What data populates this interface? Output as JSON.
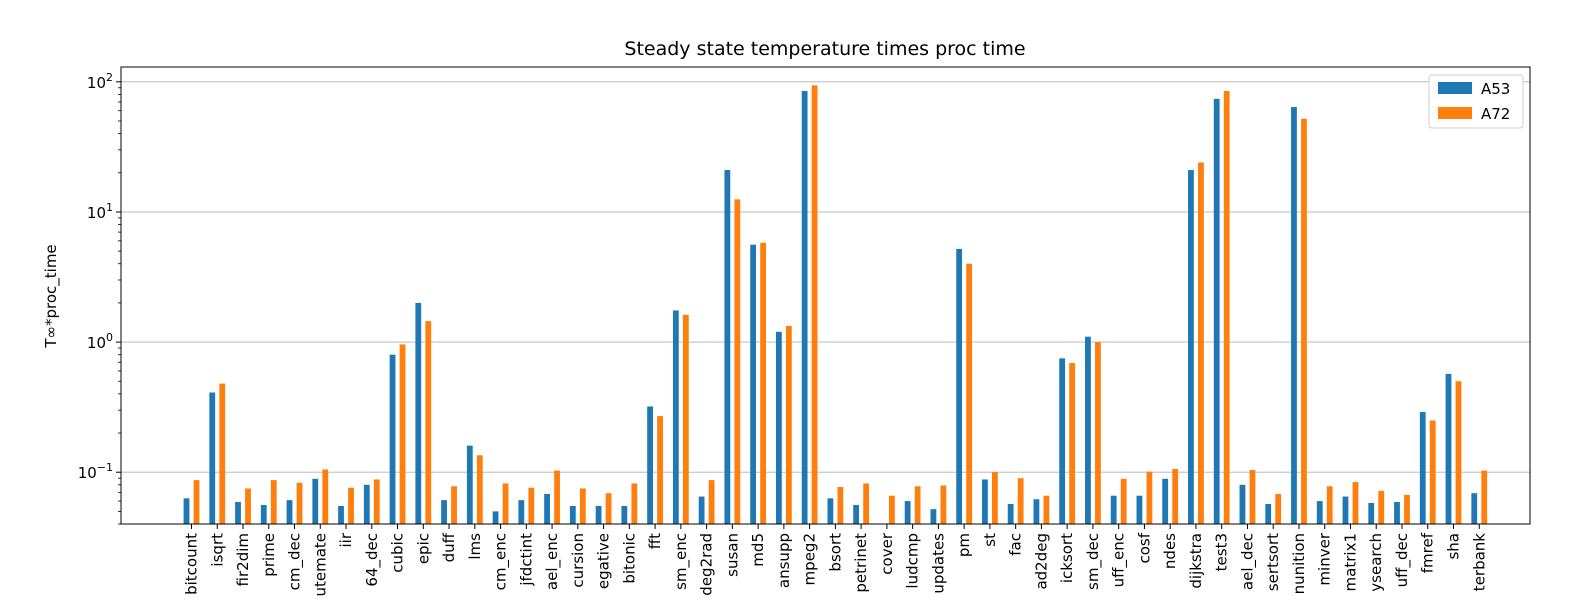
{
  "chart_data": {
    "type": "bar",
    "title": "Steady state temperature times proc time",
    "xlabel": "",
    "ylabel": "T∞*proc_time",
    "yscale": "log",
    "ylim": [
      0.04,
      130
    ],
    "yticks": [
      {
        "value": 0.1,
        "base": "10",
        "exp": "−1"
      },
      {
        "value": 1,
        "base": "10",
        "exp": "0"
      },
      {
        "value": 10,
        "base": "10",
        "exp": "1"
      },
      {
        "value": 100,
        "base": "10",
        "exp": "2"
      }
    ],
    "grid": "horizontal",
    "legend_position": "top-right",
    "categories": [
      "bitcount",
      "isqrt",
      "fir2dim",
      "prime",
      "cm_dec",
      "utemate",
      "iir",
      "64_dec",
      "cubic",
      "epic",
      "duff",
      "lms",
      "cm_enc",
      "jfdctint",
      "ael_enc",
      "cursion",
      "egative",
      "bitonic",
      "fft",
      "sm_enc",
      "deg2rad",
      "susan",
      "md5",
      "ansupp",
      "mpeg2",
      "bsort",
      "petrinet",
      "cover",
      "ludcmp",
      "updates",
      "pm",
      "st",
      "fac",
      "ad2deg",
      "icksort",
      "sm_dec",
      "uff_enc",
      "cosf",
      "ndes",
      "dijkstra",
      "test3",
      "ael_dec",
      "sertsort",
      "nunition",
      "minver",
      "matrix1",
      "ysearch",
      "uff_dec",
      "fmref",
      "sha",
      "terbank"
    ],
    "series": [
      {
        "name": "A53",
        "color": "#1f77b4",
        "values": [
          0.063,
          0.41,
          0.059,
          0.056,
          0.061,
          0.089,
          0.055,
          0.08,
          0.8,
          2.0,
          0.061,
          0.16,
          0.05,
          0.061,
          0.068,
          0.055,
          0.055,
          0.055,
          0.32,
          1.75,
          0.065,
          21.0,
          5.6,
          1.2,
          85.0,
          0.063,
          0.056,
          0.035,
          0.06,
          0.052,
          5.2,
          0.088,
          0.057,
          0.062,
          0.75,
          1.1,
          0.066,
          0.066,
          0.089,
          21.0,
          74.0,
          0.08,
          0.057,
          64.0,
          0.06,
          0.065,
          0.058,
          0.059,
          0.29,
          0.57,
          0.069
        ]
      },
      {
        "name": "A72",
        "color": "#ff7f0e",
        "values": [
          0.087,
          0.48,
          0.075,
          0.087,
          0.083,
          0.105,
          0.076,
          0.088,
          0.96,
          1.45,
          0.078,
          0.135,
          0.082,
          0.076,
          0.103,
          0.075,
          0.069,
          0.082,
          0.27,
          1.62,
          0.087,
          12.5,
          5.8,
          1.33,
          94.0,
          0.077,
          0.082,
          0.066,
          0.078,
          0.079,
          4.0,
          0.1,
          0.09,
          0.066,
          0.69,
          1.0,
          0.089,
          0.101,
          0.106,
          24.0,
          85.0,
          0.104,
          0.068,
          52.0,
          0.078,
          0.084,
          0.072,
          0.067,
          0.25,
          0.5,
          0.103
        ]
      }
    ]
  }
}
